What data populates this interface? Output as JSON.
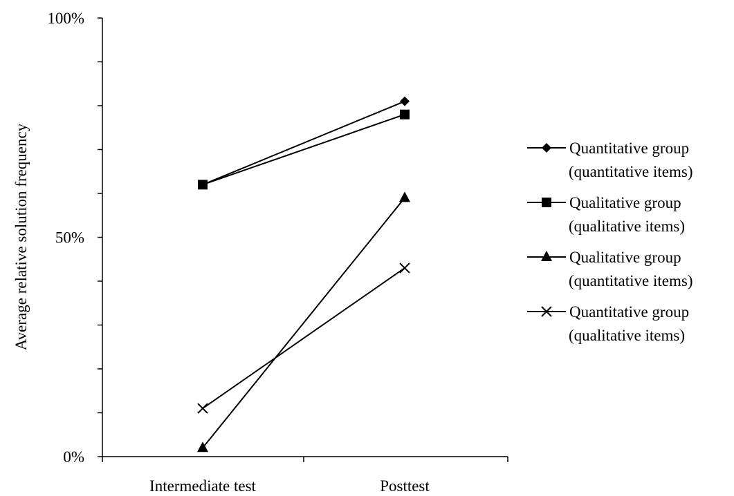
{
  "chart_data": {
    "type": "line",
    "categories": [
      "Intermediate test",
      "Posttest"
    ],
    "ylabel": "Average relative solution frequency",
    "ylim": [
      0,
      100
    ],
    "y_unit": "%",
    "y_tick_labels": [
      "0%",
      "50%",
      "100%"
    ],
    "y_tick_values": [
      0,
      50,
      100
    ],
    "y_minor_ticks": [
      0,
      10,
      20,
      30,
      40,
      50,
      60,
      70,
      80,
      90,
      100
    ],
    "grid": false,
    "legend_position": "right",
    "series": [
      {
        "name_lines": [
          "Quantitative group",
          "(quantitative items)"
        ],
        "marker": "diamond",
        "values": [
          62,
          81
        ]
      },
      {
        "name_lines": [
          "Qualitative group",
          "(qualitative items)"
        ],
        "marker": "square",
        "values": [
          62,
          78
        ]
      },
      {
        "name_lines": [
          "Qualitative group",
          "(quantitative items)"
        ],
        "marker": "triangle",
        "values": [
          2,
          59
        ]
      },
      {
        "name_lines": [
          "Quantitative group",
          "(qualitative items)"
        ],
        "marker": "x",
        "values": [
          11,
          43
        ]
      }
    ],
    "line_color": "#000000"
  }
}
